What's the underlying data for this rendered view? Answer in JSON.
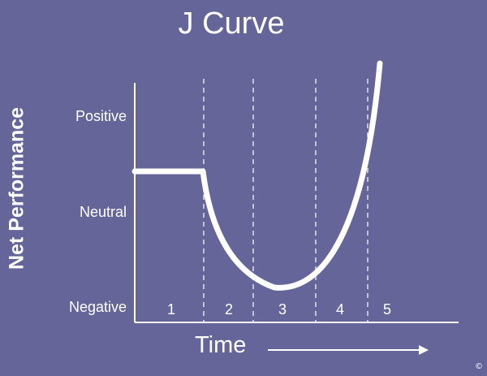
{
  "title": "J Curve",
  "y_axis": {
    "title": "Net Performance",
    "levels": [
      "Positive",
      "Neutral",
      "Negative"
    ]
  },
  "x_axis": {
    "title": "Time"
  },
  "phases": [
    "1",
    "2",
    "3",
    "4",
    "5"
  ],
  "copyright": "©",
  "colors": {
    "background": "#66659a",
    "foreground": "#ffffff"
  }
}
